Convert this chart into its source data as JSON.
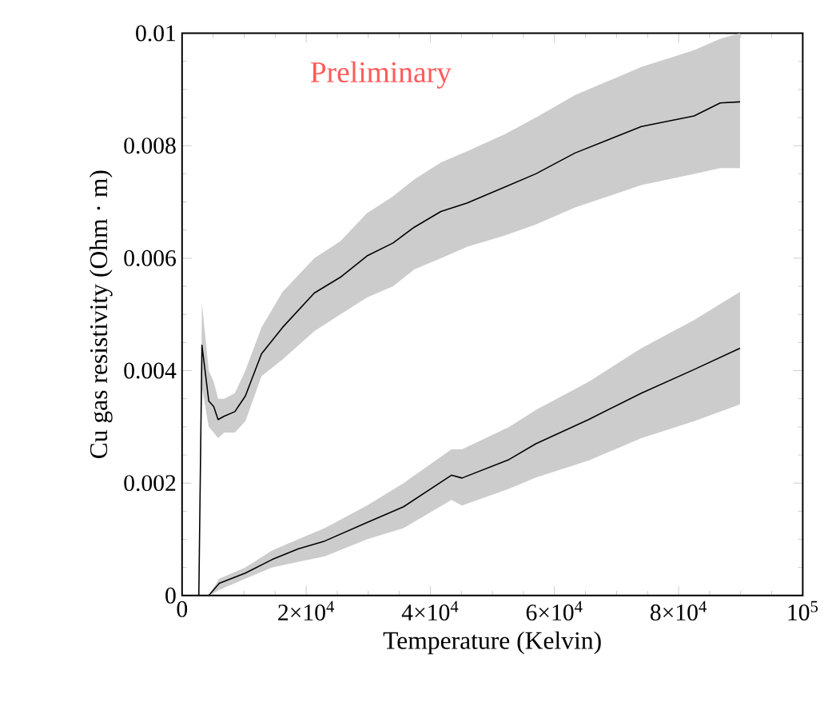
{
  "chart_data": {
    "type": "line",
    "xlabel": "Temperature (Kelvin)",
    "ylabel": "Cu gas resistivity (Ohm · m)",
    "annotations": [
      "Preliminary"
    ],
    "xlim": [
      0,
      100000
    ],
    "ylim": [
      0,
      0.01
    ],
    "xticks": [
      0,
      {
        "value": 20000,
        "label": "2×10$^{4}$"
      },
      {
        "value": 40000,
        "label": "4×10$^{4}$"
      },
      {
        "value": 60000,
        "label": "6×10$^{4}$"
      },
      {
        "value": 80000,
        "label": "8×10$^{4}$"
      },
      {
        "value": 100000,
        "label": "10$^{5}$"
      }
    ],
    "yticks": [
      0,
      0.002,
      0.004,
      0.006,
      0.008,
      0.01
    ],
    "grid": false,
    "marker": "none",
    "line_style": "solid",
    "series": [
      {
        "color": "#000000",
        "x": [
          2700,
          3200,
          4300,
          5100,
          5800,
          6800,
          8500,
          10200,
          12800,
          16200,
          21300,
          25500,
          29800,
          34000,
          37400,
          41700,
          45900,
          51900,
          57000,
          63300,
          74000,
          82500,
          86700,
          89900
        ],
        "values": [
          0,
          0.00445,
          0.00346,
          0.00336,
          0.00313,
          0.00319,
          0.00327,
          0.00355,
          0.0043,
          0.00477,
          0.00538,
          0.00566,
          0.00604,
          0.00627,
          0.00655,
          0.00683,
          0.00698,
          0.00726,
          0.0075,
          0.00787,
          0.00834,
          0.00853,
          0.00876,
          0.00878
        ],
        "lower": [
          0,
          0.0037,
          0.003,
          0.0029,
          0.0028,
          0.0029,
          0.0029,
          0.0031,
          0.0039,
          0.0042,
          0.0047,
          0.005,
          0.0053,
          0.0055,
          0.0058,
          0.006,
          0.0062,
          0.0064,
          0.0066,
          0.0069,
          0.0073,
          0.0075,
          0.0076,
          0.0076
        ],
        "upper": [
          0,
          0.0052,
          0.004,
          0.0038,
          0.0035,
          0.0035,
          0.0036,
          0.004,
          0.00477,
          0.0054,
          0.006,
          0.0063,
          0.0068,
          0.0071,
          0.0074,
          0.0077,
          0.0079,
          0.0082,
          0.0085,
          0.0089,
          0.0094,
          0.0097,
          0.0099,
          0.01
        ]
      },
      {
        "color": "#000000",
        "x": [
          4300,
          6000,
          10200,
          14500,
          18700,
          23000,
          29800,
          35700,
          43400,
          45100,
          52700,
          57000,
          65500,
          74000,
          82500,
          89900
        ],
        "values": [
          0,
          0.00022,
          0.0004,
          0.00064,
          0.00083,
          0.00097,
          0.0013,
          0.00158,
          0.00214,
          0.00209,
          0.00242,
          0.0027,
          0.00313,
          0.0036,
          0.00402,
          0.0044
        ],
        "lower": [
          0,
          0.0001,
          0.0003,
          0.0005,
          0.0006,
          0.0007,
          0.001,
          0.0012,
          0.0017,
          0.0016,
          0.0019,
          0.0021,
          0.0024,
          0.0028,
          0.0031,
          0.0034
        ],
        "upper": [
          0,
          0.0003,
          0.0005,
          0.0008,
          0.001,
          0.0012,
          0.0016,
          0.002,
          0.0026,
          0.0026,
          0.003,
          0.0033,
          0.0038,
          0.0044,
          0.0049,
          0.0054
        ]
      }
    ]
  }
}
